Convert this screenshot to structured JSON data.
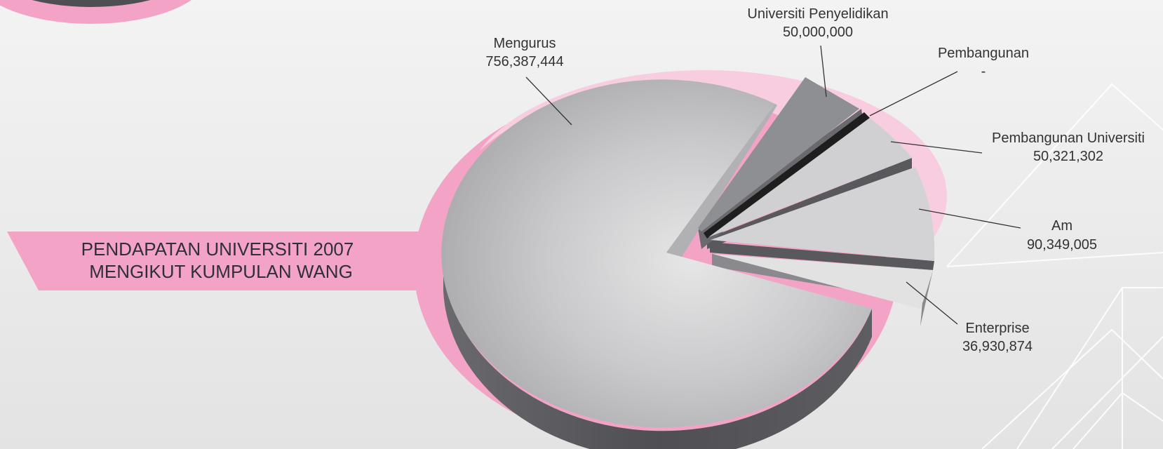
{
  "chart_data": {
    "type": "pie",
    "title": [
      "PENDAPATAN UNIVERSITI 2007",
      "MENGIKUT KUMPULAN WANG"
    ],
    "slices": [
      {
        "name": "Mengurus",
        "value": 756387444,
        "value_label": "756,387,444"
      },
      {
        "name": "Universiti Penyelidikan",
        "value": 50000000,
        "value_label": "50,000,000"
      },
      {
        "name": "Pembangunan",
        "value": 0,
        "value_label": "-"
      },
      {
        "name": "Pembangunan Universiti",
        "value": 50321302,
        "value_label": "50,321,302"
      },
      {
        "name": "Am",
        "value": 90349005,
        "value_label": "90,349,005"
      },
      {
        "name": "Enterprise",
        "value": 36930874,
        "value_label": "36,930,874"
      }
    ]
  },
  "colors": {
    "background": "#ececec",
    "accent_pink": "#f3a3c6",
    "accent_pink_light": "#f8cde0",
    "slice_light": "#d2d2d4",
    "slice_dark": "#8e8f92",
    "slice_black": "#1e1e1e",
    "side_dark": "#5a5a5e"
  }
}
